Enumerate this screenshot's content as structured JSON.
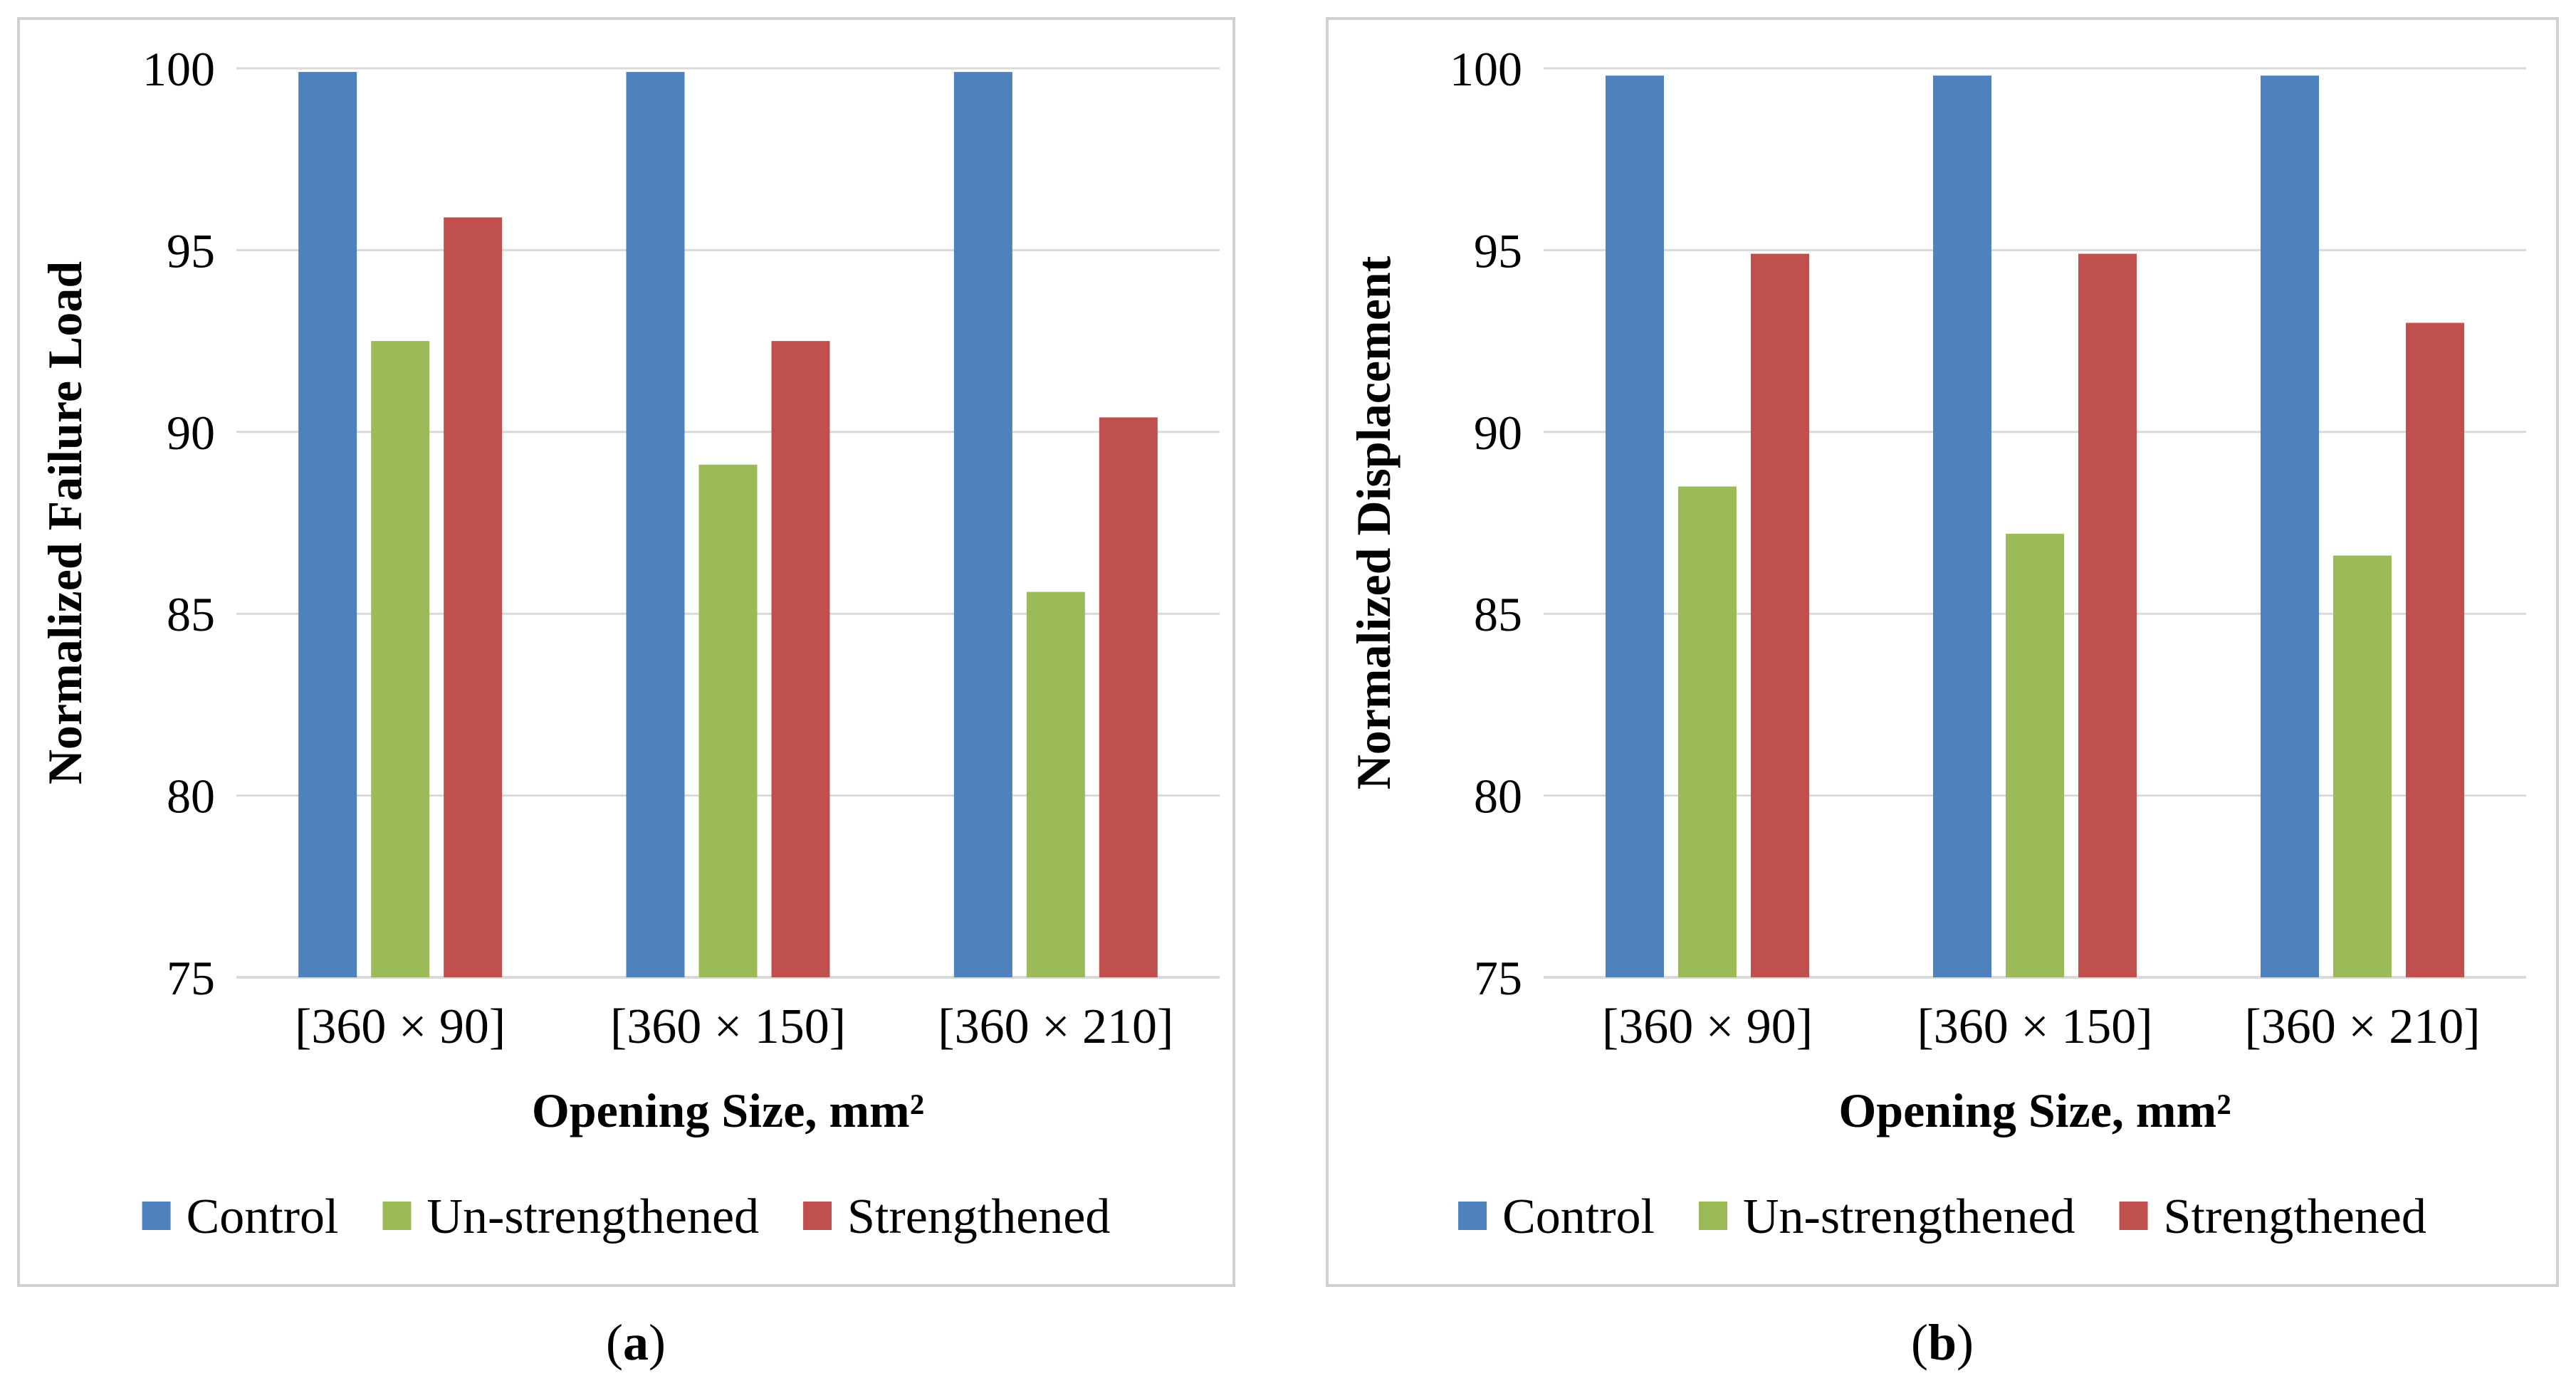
{
  "colors": {
    "control": "#4F81BD",
    "unstrengthened": "#9BBB59",
    "strengthened": "#C0504D",
    "grid": "#D9D9D9",
    "frame": "#D0D0D0",
    "text": "#000000"
  },
  "chart_data": [
    {
      "type": "bar",
      "panel_label": "a",
      "title": "",
      "xlabel": "Opening Size, mm²",
      "ylabel": "Normalized Failure Load",
      "ylim": [
        75,
        100
      ],
      "yticks": [
        "100",
        "95",
        "90",
        "85",
        "80",
        "75"
      ],
      "categories": [
        "[360 × 90]",
        "[360 × 150]",
        "[360 × 210]"
      ],
      "legend_position": "bottom",
      "series": [
        {
          "name": "Control",
          "color_key": "control",
          "values": [
            99.9,
            99.9,
            99.9
          ]
        },
        {
          "name": "Un-strengthened",
          "color_key": "unstrengthened",
          "values": [
            92.5,
            89.1,
            85.6
          ]
        },
        {
          "name": "Strengthened",
          "color_key": "strengthened",
          "values": [
            95.9,
            92.5,
            90.4
          ]
        }
      ]
    },
    {
      "type": "bar",
      "panel_label": "b",
      "title": "",
      "xlabel": "Opening Size, mm²",
      "ylabel": "Normalized Displacement",
      "ylim": [
        75,
        100
      ],
      "yticks": [
        "100",
        "95",
        "90",
        "85",
        "80",
        "75"
      ],
      "categories": [
        "[360 × 90]",
        "[360 × 150]",
        "[360 × 210]"
      ],
      "legend_position": "bottom",
      "series": [
        {
          "name": "Control",
          "color_key": "control",
          "values": [
            99.8,
            99.8,
            99.8
          ]
        },
        {
          "name": "Un-strengthened",
          "color_key": "unstrengthened",
          "values": [
            88.5,
            87.2,
            86.6
          ]
        },
        {
          "name": "Strengthened",
          "color_key": "strengthened",
          "values": [
            94.9,
            94.9,
            93.0
          ]
        }
      ]
    }
  ]
}
